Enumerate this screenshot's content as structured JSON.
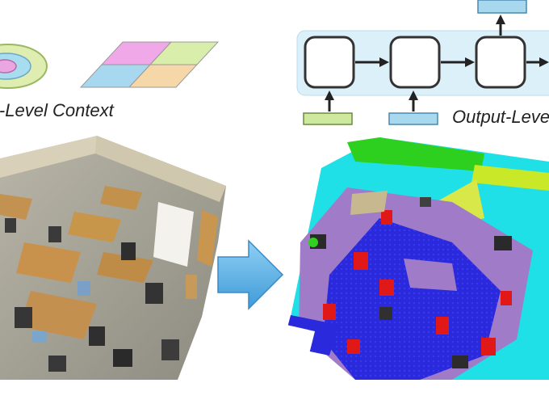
{
  "labels": {
    "input_level": "Input-Level Context",
    "output_level": "Output-Level Context"
  },
  "diagram": {
    "input_cloud": "rgb-indoor-point-cloud",
    "output_cloud": "semantic-segmented-point-cloud",
    "flow": "input-to-output-arrow"
  },
  "colors": {
    "rnn_cell_bg": "#d9eef8",
    "feature_green": "#cfe8a0",
    "feature_blue": "#a8d8ee",
    "label_purple": "#a07cc8",
    "label_blue": "#1010d8",
    "label_red": "#e01818",
    "label_green": "#30d020",
    "label_cyan": "#20e0e8",
    "label_yellow": "#e8e040",
    "arrow_blue": "#5ab0e6"
  }
}
